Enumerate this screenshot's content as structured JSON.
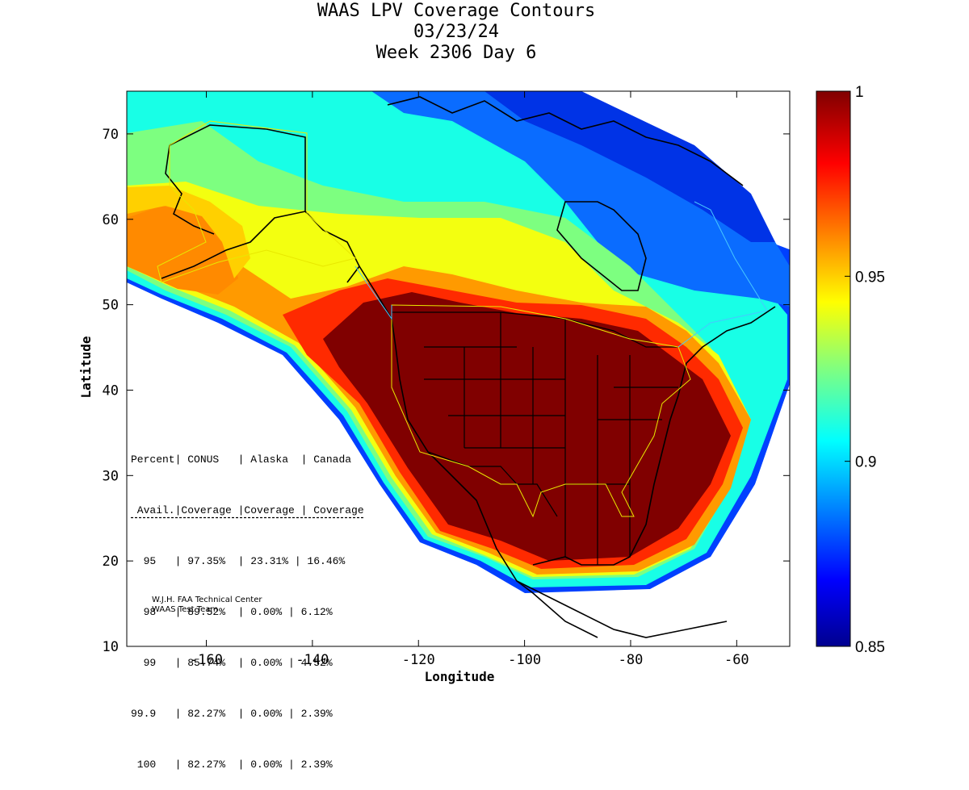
{
  "title": {
    "line1": "WAAS LPV Coverage Contours",
    "line2": "03/23/24",
    "line3": "Week 2306 Day 6"
  },
  "axes": {
    "xlabel": "Longitude",
    "ylabel": "Latitude",
    "x_ticks": [
      "-160",
      "-140",
      "-120",
      "-100",
      "-80",
      "-60"
    ],
    "y_ticks": [
      "70",
      "60",
      "50",
      "40",
      "30",
      "20",
      "10"
    ]
  },
  "colorbar": {
    "ticks": [
      "1",
      "0.95",
      "0.9",
      "0.85"
    ]
  },
  "table": {
    "header1": "Percent| CONUS   | Alaska  | Canada",
    "header2": " Avail.|Coverage |Coverage | Coverage",
    "rows": [
      "  95   | 97.35%  | 23.31% | 16.46%",
      "  98   | 89.52%  | 0.00% | 6.12%",
      "  99   | 85.74%  | 0.00% | 4.52%",
      "99.9   | 82.27%  | 0.00% | 2.39%",
      " 100   | 82.27%  | 0.00% | 2.39%"
    ]
  },
  "credit": {
    "line1": "W.J.H. FAA Technical Center",
    "line2": "WAAS Test Team"
  },
  "chart_data": {
    "type": "heatmap",
    "title": "WAAS LPV Coverage Contours 03/23/24 Week 2306 Day 6",
    "xlabel": "Longitude",
    "ylabel": "Latitude",
    "xlim": [
      -175,
      -50
    ],
    "ylim": [
      10,
      75
    ],
    "x_ticks": [
      -160,
      -140,
      -120,
      -100,
      -80,
      -60
    ],
    "y_ticks": [
      10,
      20,
      30,
      40,
      50,
      60,
      70
    ],
    "colorbar_range": [
      0.85,
      1
    ],
    "colorbar_ticks": [
      0.85,
      0.9,
      0.95,
      1
    ],
    "colormap": "jet",
    "coverage_table": {
      "columns": [
        "Percent Avail.",
        "CONUS Coverage",
        "Alaska Coverage",
        "Canada Coverage"
      ],
      "rows": [
        [
          "95",
          "97.35%",
          "23.31%",
          "16.46%"
        ],
        [
          "98",
          "89.52%",
          "0.00%",
          "6.12%"
        ],
        [
          "99",
          "85.74%",
          "0.00%",
          "4.52%"
        ],
        [
          "99.9",
          "82.27%",
          "0.00%",
          "2.39%"
        ],
        [
          "100",
          "82.27%",
          "0.00%",
          "2.39%"
        ]
      ]
    }
  }
}
